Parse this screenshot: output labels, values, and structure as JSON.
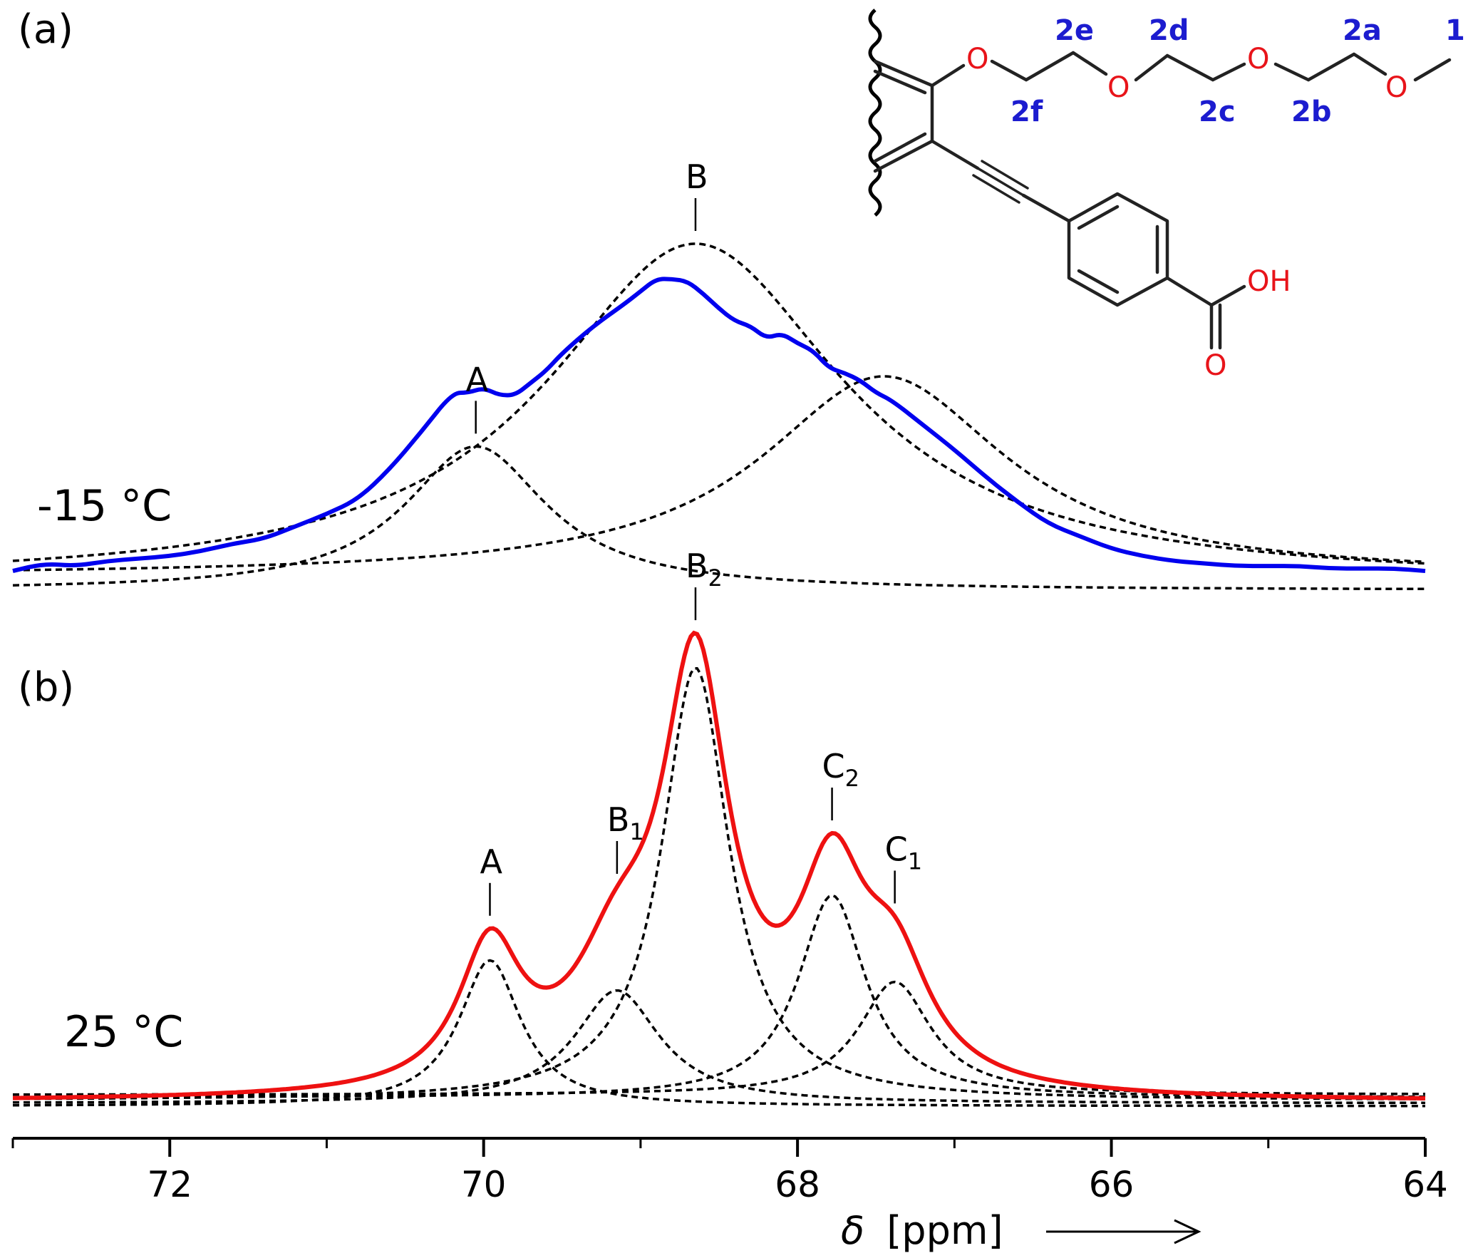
{
  "chart_data": [
    {
      "panel": "(a)",
      "type": "line",
      "annotation": "-15 °C",
      "color": "#0000ee",
      "peaks": [
        {
          "label": "A",
          "subscript": "",
          "center": 70.05,
          "height": 0.36,
          "width": 0.55
        },
        {
          "label": "B",
          "subscript": "",
          "center": 68.65,
          "height": 0.85,
          "width": 1.15
        },
        {
          "label": "",
          "subscript": "",
          "center": 67.45,
          "height": 0.5,
          "width": 0.95
        }
      ],
      "baseline": 0.0,
      "total_curve": {
        "x": [
          73.0,
          72.8,
          72.6,
          72.4,
          72.2,
          72.0,
          71.8,
          71.6,
          71.4,
          71.2,
          71.0,
          70.8,
          70.6,
          70.4,
          70.2,
          70.1,
          70.0,
          69.9,
          69.8,
          69.7,
          69.6,
          69.5,
          69.3,
          69.1,
          69.0,
          68.9,
          68.8,
          68.7,
          68.6,
          68.5,
          68.4,
          68.3,
          68.2,
          68.1,
          68.0,
          67.9,
          67.8,
          67.7,
          67.6,
          67.5,
          67.4,
          67.2,
          67.0,
          66.8,
          66.6,
          66.4,
          66.2,
          66.0,
          65.8,
          65.6,
          65.4,
          65.2,
          65.0,
          64.8,
          64.6,
          64.4,
          64.2,
          64.0
        ],
        "y": [
          0.02,
          0.05,
          0.04,
          0.06,
          0.07,
          0.08,
          0.1,
          0.13,
          0.15,
          0.2,
          0.25,
          0.31,
          0.43,
          0.58,
          0.74,
          0.74,
          0.76,
          0.73,
          0.73,
          0.78,
          0.83,
          0.9,
          1.01,
          1.1,
          1.15,
          1.2,
          1.2,
          1.19,
          1.14,
          1.08,
          1.03,
          1.01,
          0.96,
          0.98,
          0.94,
          0.91,
          0.84,
          0.82,
          0.79,
          0.74,
          0.71,
          0.61,
          0.51,
          0.4,
          0.3,
          0.21,
          0.16,
          0.11,
          0.08,
          0.06,
          0.05,
          0.04,
          0.04,
          0.04,
          0.03,
          0.03,
          0.03,
          0.02
        ]
      }
    },
    {
      "panel": "(b)",
      "type": "line",
      "annotation": "25 °C",
      "color": "#ee1111",
      "peaks": [
        {
          "label": "A",
          "subscript": "",
          "center": 69.96,
          "height": 0.31,
          "width": 0.24
        },
        {
          "label": "B",
          "subscript": "1",
          "center": 69.15,
          "height": 0.24,
          "width": 0.33
        },
        {
          "label": "B",
          "subscript": "2",
          "center": 68.65,
          "height": 0.92,
          "width": 0.26
        },
        {
          "label": "C",
          "subscript": "2",
          "center": 67.78,
          "height": 0.43,
          "width": 0.26
        },
        {
          "label": "C",
          "subscript": "1",
          "center": 67.38,
          "height": 0.24,
          "width": 0.28
        }
      ],
      "baseline": 0.0
    }
  ],
  "x_axis": {
    "label_symbol": "δ",
    "label_unit": "[ppm]",
    "range": [
      73.0,
      64.0
    ],
    "major_ticks": [
      72,
      70,
      68,
      66,
      64
    ],
    "minor_ticks": [
      73,
      71,
      69,
      67,
      65
    ],
    "tick_labels": [
      "72",
      "70",
      "68",
      "66",
      "64"
    ],
    "reversed": true
  },
  "structure": {
    "carbon_labels": [
      "1",
      "2a",
      "2b",
      "2c",
      "2d",
      "2e",
      "2f"
    ],
    "oxygen_label": "O",
    "acid_label": "OH",
    "carbonyl_label": "O"
  }
}
